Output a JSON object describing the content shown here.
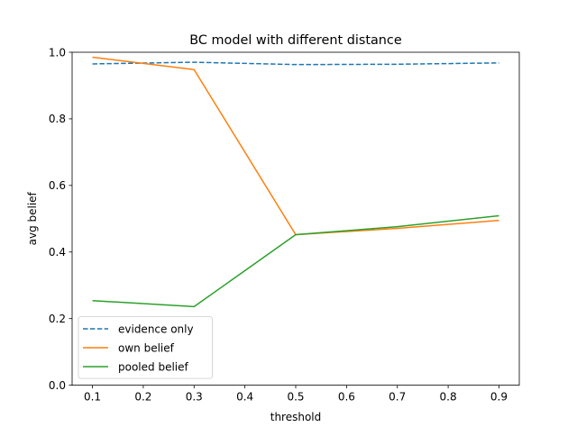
{
  "chart_data": {
    "type": "line",
    "title": "BC model with different distance",
    "xlabel": "threshold",
    "ylabel": "avg belief",
    "x": [
      0.1,
      0.3,
      0.5,
      0.7,
      0.9
    ],
    "xticks": [
      "0.1",
      "0.2",
      "0.3",
      "0.4",
      "0.5",
      "0.6",
      "0.7",
      "0.8",
      "0.9"
    ],
    "yticks": [
      "0.0",
      "0.2",
      "0.4",
      "0.6",
      "0.8",
      "1.0"
    ],
    "xlim": [
      0.06,
      0.94
    ],
    "ylim": [
      0,
      1
    ],
    "grid": false,
    "legend_position": "lower-left",
    "series": [
      {
        "name": "evidence only",
        "values": [
          0.965,
          0.97,
          0.963,
          0.964,
          0.968
        ],
        "color": "#1f77b4",
        "style": "dashed"
      },
      {
        "name": "own belief",
        "values": [
          0.985,
          0.948,
          0.452,
          0.471,
          0.495
        ],
        "color": "#ff7f0e",
        "style": "solid"
      },
      {
        "name": "pooled belief",
        "values": [
          0.254,
          0.236,
          0.452,
          0.476,
          0.509
        ],
        "color": "#2ca02c",
        "style": "solid"
      }
    ]
  }
}
